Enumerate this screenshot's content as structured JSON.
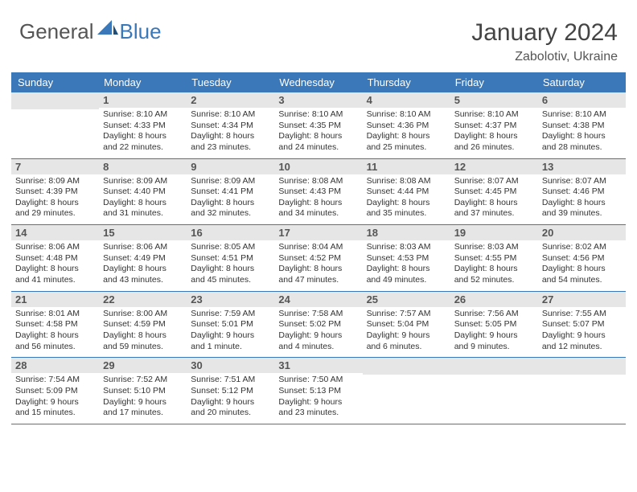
{
  "logo": {
    "general": "General",
    "blue": "Blue"
  },
  "title": "January 2024",
  "subtitle": "Zabolotiv, Ukraine",
  "dayHeaders": [
    "Sunday",
    "Monday",
    "Tuesday",
    "Wednesday",
    "Thursday",
    "Friday",
    "Saturday"
  ],
  "colors": {
    "headerBg": "#3a78b9",
    "headerText": "#ffffff",
    "dayNumBg": "#e6e6e6",
    "bodyText": "#333333",
    "titleText": "#444444",
    "border": "#3a78b9"
  },
  "weeks": [
    [
      null,
      {
        "n": "1",
        "sr": "Sunrise: 8:10 AM",
        "ss": "Sunset: 4:33 PM",
        "d1": "Daylight: 8 hours",
        "d2": "and 22 minutes."
      },
      {
        "n": "2",
        "sr": "Sunrise: 8:10 AM",
        "ss": "Sunset: 4:34 PM",
        "d1": "Daylight: 8 hours",
        "d2": "and 23 minutes."
      },
      {
        "n": "3",
        "sr": "Sunrise: 8:10 AM",
        "ss": "Sunset: 4:35 PM",
        "d1": "Daylight: 8 hours",
        "d2": "and 24 minutes."
      },
      {
        "n": "4",
        "sr": "Sunrise: 8:10 AM",
        "ss": "Sunset: 4:36 PM",
        "d1": "Daylight: 8 hours",
        "d2": "and 25 minutes."
      },
      {
        "n": "5",
        "sr": "Sunrise: 8:10 AM",
        "ss": "Sunset: 4:37 PM",
        "d1": "Daylight: 8 hours",
        "d2": "and 26 minutes."
      },
      {
        "n": "6",
        "sr": "Sunrise: 8:10 AM",
        "ss": "Sunset: 4:38 PM",
        "d1": "Daylight: 8 hours",
        "d2": "and 28 minutes."
      }
    ],
    [
      {
        "n": "7",
        "sr": "Sunrise: 8:09 AM",
        "ss": "Sunset: 4:39 PM",
        "d1": "Daylight: 8 hours",
        "d2": "and 29 minutes."
      },
      {
        "n": "8",
        "sr": "Sunrise: 8:09 AM",
        "ss": "Sunset: 4:40 PM",
        "d1": "Daylight: 8 hours",
        "d2": "and 31 minutes."
      },
      {
        "n": "9",
        "sr": "Sunrise: 8:09 AM",
        "ss": "Sunset: 4:41 PM",
        "d1": "Daylight: 8 hours",
        "d2": "and 32 minutes."
      },
      {
        "n": "10",
        "sr": "Sunrise: 8:08 AM",
        "ss": "Sunset: 4:43 PM",
        "d1": "Daylight: 8 hours",
        "d2": "and 34 minutes."
      },
      {
        "n": "11",
        "sr": "Sunrise: 8:08 AM",
        "ss": "Sunset: 4:44 PM",
        "d1": "Daylight: 8 hours",
        "d2": "and 35 minutes."
      },
      {
        "n": "12",
        "sr": "Sunrise: 8:07 AM",
        "ss": "Sunset: 4:45 PM",
        "d1": "Daylight: 8 hours",
        "d2": "and 37 minutes."
      },
      {
        "n": "13",
        "sr": "Sunrise: 8:07 AM",
        "ss": "Sunset: 4:46 PM",
        "d1": "Daylight: 8 hours",
        "d2": "and 39 minutes."
      }
    ],
    [
      {
        "n": "14",
        "sr": "Sunrise: 8:06 AM",
        "ss": "Sunset: 4:48 PM",
        "d1": "Daylight: 8 hours",
        "d2": "and 41 minutes."
      },
      {
        "n": "15",
        "sr": "Sunrise: 8:06 AM",
        "ss": "Sunset: 4:49 PM",
        "d1": "Daylight: 8 hours",
        "d2": "and 43 minutes."
      },
      {
        "n": "16",
        "sr": "Sunrise: 8:05 AM",
        "ss": "Sunset: 4:51 PM",
        "d1": "Daylight: 8 hours",
        "d2": "and 45 minutes."
      },
      {
        "n": "17",
        "sr": "Sunrise: 8:04 AM",
        "ss": "Sunset: 4:52 PM",
        "d1": "Daylight: 8 hours",
        "d2": "and 47 minutes."
      },
      {
        "n": "18",
        "sr": "Sunrise: 8:03 AM",
        "ss": "Sunset: 4:53 PM",
        "d1": "Daylight: 8 hours",
        "d2": "and 49 minutes."
      },
      {
        "n": "19",
        "sr": "Sunrise: 8:03 AM",
        "ss": "Sunset: 4:55 PM",
        "d1": "Daylight: 8 hours",
        "d2": "and 52 minutes."
      },
      {
        "n": "20",
        "sr": "Sunrise: 8:02 AM",
        "ss": "Sunset: 4:56 PM",
        "d1": "Daylight: 8 hours",
        "d2": "and 54 minutes."
      }
    ],
    [
      {
        "n": "21",
        "sr": "Sunrise: 8:01 AM",
        "ss": "Sunset: 4:58 PM",
        "d1": "Daylight: 8 hours",
        "d2": "and 56 minutes."
      },
      {
        "n": "22",
        "sr": "Sunrise: 8:00 AM",
        "ss": "Sunset: 4:59 PM",
        "d1": "Daylight: 8 hours",
        "d2": "and 59 minutes."
      },
      {
        "n": "23",
        "sr": "Sunrise: 7:59 AM",
        "ss": "Sunset: 5:01 PM",
        "d1": "Daylight: 9 hours",
        "d2": "and 1 minute."
      },
      {
        "n": "24",
        "sr": "Sunrise: 7:58 AM",
        "ss": "Sunset: 5:02 PM",
        "d1": "Daylight: 9 hours",
        "d2": "and 4 minutes."
      },
      {
        "n": "25",
        "sr": "Sunrise: 7:57 AM",
        "ss": "Sunset: 5:04 PM",
        "d1": "Daylight: 9 hours",
        "d2": "and 6 minutes."
      },
      {
        "n": "26",
        "sr": "Sunrise: 7:56 AM",
        "ss": "Sunset: 5:05 PM",
        "d1": "Daylight: 9 hours",
        "d2": "and 9 minutes."
      },
      {
        "n": "27",
        "sr": "Sunrise: 7:55 AM",
        "ss": "Sunset: 5:07 PM",
        "d1": "Daylight: 9 hours",
        "d2": "and 12 minutes."
      }
    ],
    [
      {
        "n": "28",
        "sr": "Sunrise: 7:54 AM",
        "ss": "Sunset: 5:09 PM",
        "d1": "Daylight: 9 hours",
        "d2": "and 15 minutes."
      },
      {
        "n": "29",
        "sr": "Sunrise: 7:52 AM",
        "ss": "Sunset: 5:10 PM",
        "d1": "Daylight: 9 hours",
        "d2": "and 17 minutes."
      },
      {
        "n": "30",
        "sr": "Sunrise: 7:51 AM",
        "ss": "Sunset: 5:12 PM",
        "d1": "Daylight: 9 hours",
        "d2": "and 20 minutes."
      },
      {
        "n": "31",
        "sr": "Sunrise: 7:50 AM",
        "ss": "Sunset: 5:13 PM",
        "d1": "Daylight: 9 hours",
        "d2": "and 23 minutes."
      },
      null,
      null,
      null
    ]
  ]
}
